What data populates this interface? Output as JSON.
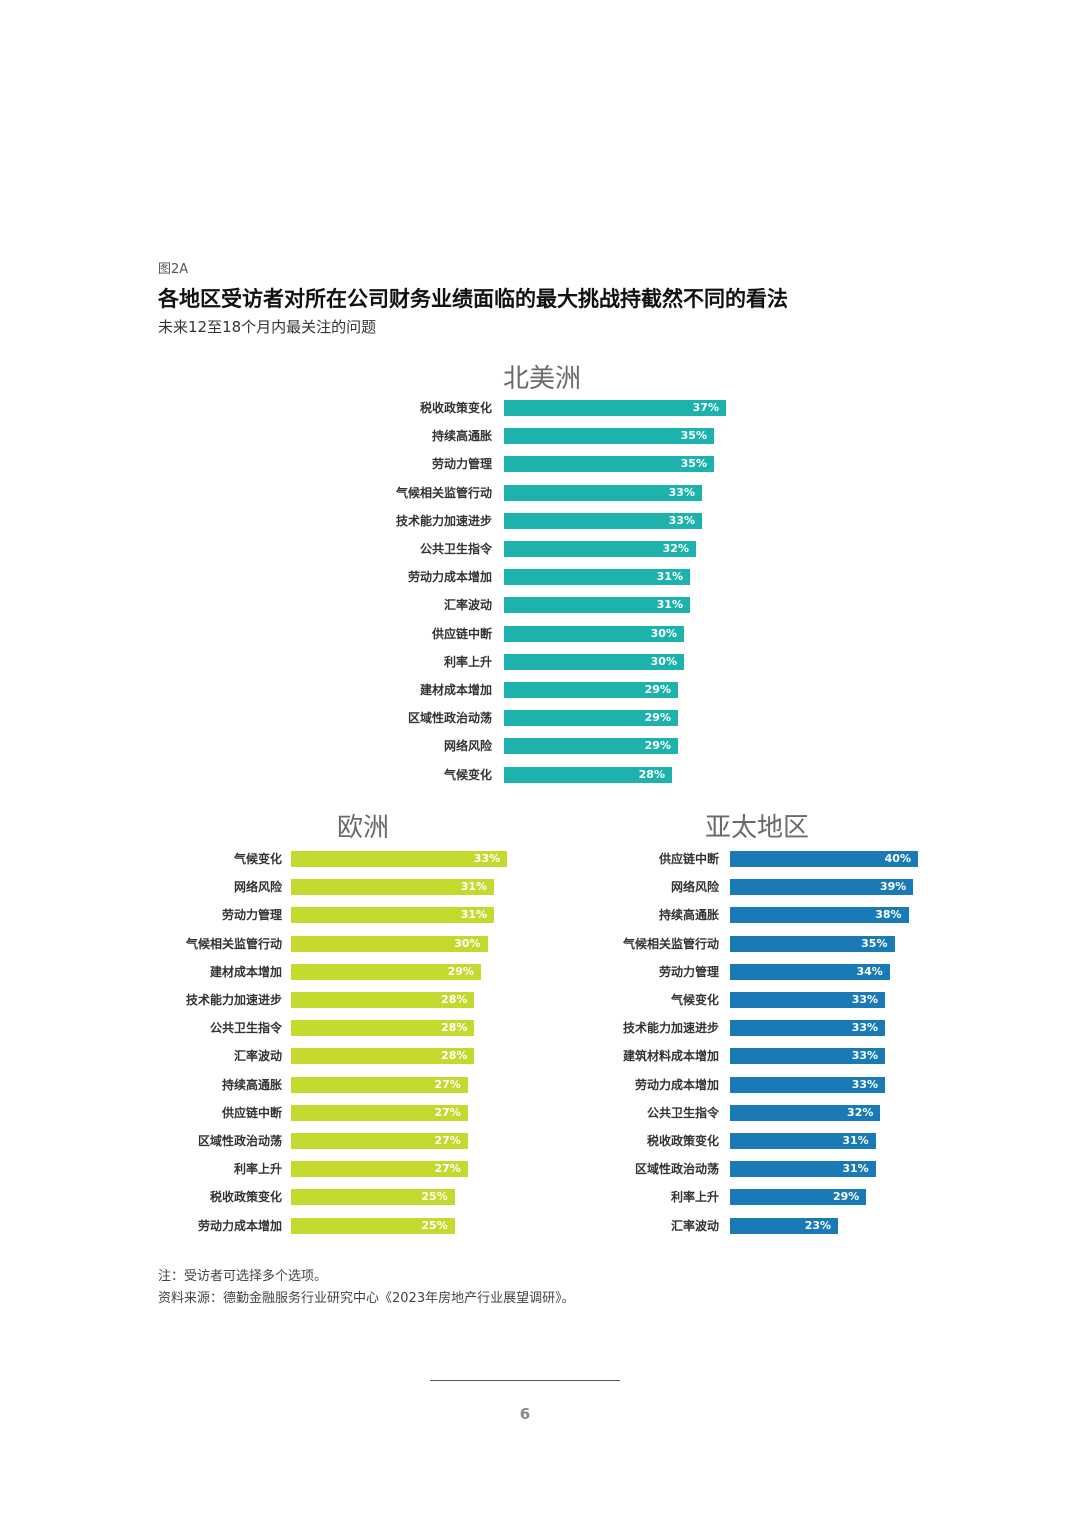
{
  "figure_label": "图2A",
  "title": "各地区受访者对所在公司财务业绩面临的最大挑战持截然不同的看法",
  "subtitle": "未来12至18个月内最关注的问题",
  "chart_data": [
    {
      "type": "bar",
      "title": "北美洲",
      "color": "#1db3ac",
      "categories": [
        "税收政策变化",
        "持续高通胀",
        "劳动力管理",
        "气候相关监管行动",
        "技术能力加速进步",
        "公共卫生指令",
        "劳动力成本增加",
        "汇率波动",
        "供应链中断",
        "利率上升",
        "建材成本增加",
        "区域性政治动荡",
        "网络风险",
        "气候变化"
      ],
      "values": [
        37,
        35,
        35,
        33,
        33,
        32,
        31,
        31,
        30,
        30,
        29,
        29,
        29,
        28
      ],
      "labels": [
        "37%",
        "35%",
        "35%",
        "33%",
        "33%",
        "32%",
        "31%",
        "31%",
        "30%",
        "30%",
        "29%",
        "29%",
        "29%",
        "28%"
      ]
    },
    {
      "type": "bar",
      "title": "欧洲",
      "color": "#c3d92e",
      "categories": [
        "气候变化",
        "网络风险",
        "劳动力管理",
        "气候相关监管行动",
        "建材成本增加",
        "技术能力加速进步",
        "公共卫生指令",
        "汇率波动",
        "持续高通胀",
        "供应链中断",
        "区域性政治动荡",
        "利率上升",
        "税收政策变化",
        "劳动力成本增加"
      ],
      "values": [
        33,
        31,
        31,
        30,
        29,
        28,
        28,
        28,
        27,
        27,
        27,
        27,
        25,
        25
      ],
      "labels": [
        "33%",
        "31%",
        "31%",
        "30%",
        "29%",
        "28%",
        "28%",
        "28%",
        "27%",
        "27%",
        "27%",
        "27%",
        "25%",
        "25%"
      ]
    },
    {
      "type": "bar",
      "title": "亚太地区",
      "color": "#1a7ab5",
      "categories": [
        "供应链中断",
        "网络风险",
        "持续高通胀",
        "气候相关监管行动",
        "劳动力管理",
        "气候变化",
        "技术能力加速进步",
        "建筑材料成本增加",
        "劳动力成本增加",
        "公共卫生指令",
        "税收政策变化",
        "区域性政治动荡",
        "利率上升",
        "汇率波动"
      ],
      "values": [
        40,
        39,
        38,
        35,
        34,
        33,
        33,
        33,
        33,
        32,
        31,
        31,
        29,
        23
      ],
      "labels": [
        "40%",
        "39%",
        "38%",
        "35%",
        "34%",
        "33%",
        "33%",
        "33%",
        "33%",
        "32%",
        "31%",
        "31%",
        "29%",
        "23%"
      ]
    }
  ],
  "notes": {
    "note": "注：受访者可选择多个选项。",
    "source": "资料来源：德勤金融服务行业研究中心《2023年房地产行业展望调研》。"
  },
  "page_number": "6"
}
